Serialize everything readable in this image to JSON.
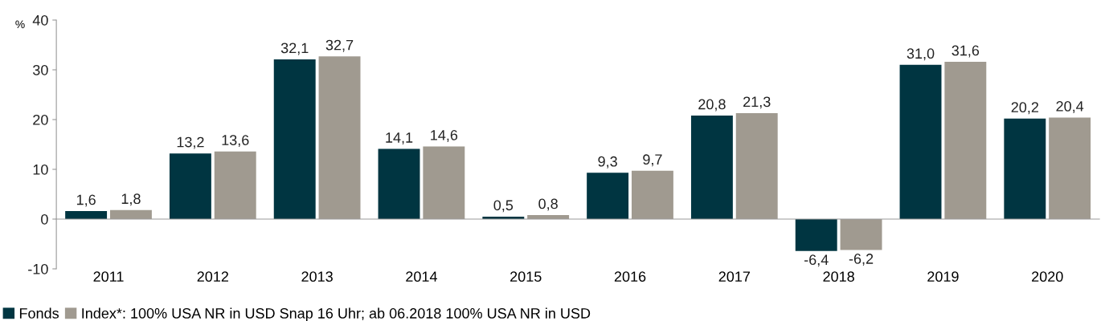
{
  "chart_data": {
    "type": "bar",
    "ylabel": "%",
    "categories": [
      "2011",
      "2012",
      "2013",
      "2014",
      "2015",
      "2016",
      "2017",
      "2018",
      "2019",
      "2020"
    ],
    "series": [
      {
        "name": "Fonds",
        "color": "#003541",
        "values": [
          1.6,
          13.2,
          32.1,
          14.1,
          0.5,
          9.3,
          20.8,
          -6.4,
          31.0,
          20.2
        ],
        "value_labels": [
          "1,6",
          "13,2",
          "32,1",
          "14,1",
          "0,5",
          "9,3",
          "20,8",
          "-6,4",
          "31,0",
          "20,2"
        ]
      },
      {
        "name": "Index*: 100% USA NR in USD Snap 16 Uhr; ab 06.2018 100% USA NR in USD",
        "color": "#a09a90",
        "values": [
          1.8,
          13.6,
          32.7,
          14.6,
          0.8,
          9.7,
          21.3,
          -6.2,
          31.6,
          20.4
        ],
        "value_labels": [
          "1,8",
          "13,6",
          "32,7",
          "14,6",
          "0,8",
          "9,7",
          "21,3",
          "-6,2",
          "31,6",
          "20,4"
        ]
      }
    ],
    "ylim": [
      -10,
      40
    ],
    "yticks": [
      -10,
      0,
      10,
      20,
      30,
      40
    ],
    "legend": "bottom"
  }
}
